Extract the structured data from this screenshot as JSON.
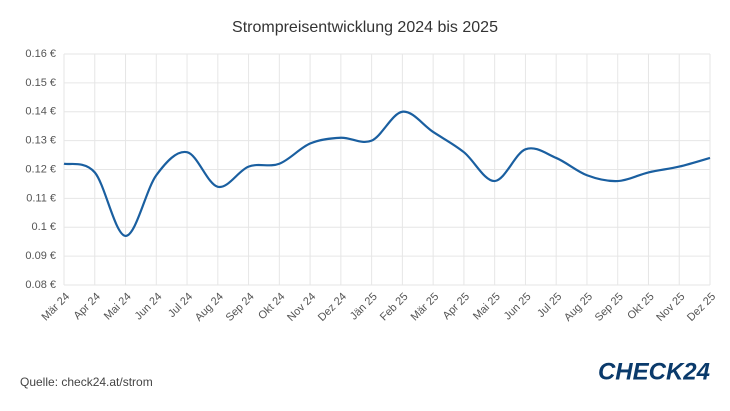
{
  "chart_data": {
    "type": "line",
    "title": "Strompreisentwicklung 2024 bis 2025",
    "categories": [
      "Mär 24",
      "Apr 24",
      "Mai 24",
      "Jun 24",
      "Jul 24",
      "Aug 24",
      "Sep 24",
      "Okt 24",
      "Nov 24",
      "Dez 24",
      "Jän 25",
      "Feb 25",
      "Mär 25",
      "Apr 25",
      "Mai 25",
      "Jun 25",
      "Jul 25",
      "Aug 25",
      "Sep 25",
      "Okt 25",
      "Nov 25",
      "Dez 25"
    ],
    "series": [
      {
        "color": "#1a5fa0",
        "values": [
          0.122,
          0.119,
          0.097,
          0.118,
          0.126,
          0.114,
          0.121,
          0.122,
          0.129,
          0.131,
          0.13,
          0.14,
          0.133,
          0.126,
          0.116,
          0.127,
          0.124,
          0.118,
          0.116,
          0.119,
          0.121,
          0.124
        ]
      }
    ],
    "ylim": [
      0.08,
      0.16
    ],
    "yticks": [
      {
        "value": 0.08,
        "label": "0.08 €"
      },
      {
        "value": 0.09,
        "label": "0.09 €"
      },
      {
        "value": 0.1,
        "label": "0.1 €"
      },
      {
        "value": 0.11,
        "label": "0.11 €"
      },
      {
        "value": 0.12,
        "label": "0.12 €"
      },
      {
        "value": 0.13,
        "label": "0.13 €"
      },
      {
        "value": 0.14,
        "label": "0.14 €"
      },
      {
        "value": 0.15,
        "label": "0.15 €"
      },
      {
        "value": 0.16,
        "label": "0.16 €"
      }
    ],
    "grid": true
  },
  "source": "Quelle: check24.at/strom",
  "logo": "CHECK24"
}
